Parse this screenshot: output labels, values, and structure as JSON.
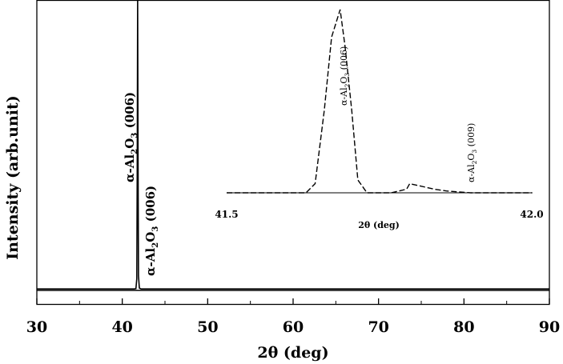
{
  "chart_data": [
    {
      "type": "line",
      "role": "main",
      "xlabel": "2θ (deg)",
      "ylabel": "Intensity (arb.unit)",
      "xlim": [
        30,
        90
      ],
      "ylim": [
        0,
        100
      ],
      "xticks": [
        30,
        40,
        50,
        60,
        70,
        80,
        90
      ],
      "xtick_labels": [
        "30",
        "40",
        "50",
        "60",
        "70",
        "80",
        "90"
      ],
      "y_ticks_shown": false,
      "grid": false,
      "x": [
        30,
        41.4,
        41.6,
        41.7,
        41.75,
        41.8,
        41.85,
        41.9,
        42.0,
        42.2,
        90
      ],
      "y": [
        0.5,
        0.5,
        0.6,
        4,
        40,
        100,
        45,
        5,
        0.8,
        0.5,
        0.5
      ],
      "annotations": [
        {
          "main": "α-Al",
          "sub1": "2",
          "mid": "O",
          "sub2": "3",
          "tail": " (006)",
          "at_x": 41.7,
          "orientation": "vertical",
          "position": "upper-left of peak"
        },
        {
          "main": "α-Al",
          "sub1": "2",
          "mid": "O",
          "sub2": "3",
          "tail": " (006)",
          "at_x": 42.0,
          "orientation": "vertical",
          "position": "lower-right of peak"
        }
      ]
    },
    {
      "type": "line",
      "role": "inset",
      "style": "dashed",
      "xlabel": "2θ (deg)",
      "ylabel": "",
      "xlim": [
        41.5,
        42.0
      ],
      "xtick_labels": [
        "41.5",
        "42.0"
      ],
      "ylim": [
        0,
        100
      ],
      "x": [
        41.5,
        41.63,
        41.645,
        41.66,
        41.672,
        41.686,
        41.694,
        41.705,
        41.715,
        41.73,
        41.77,
        41.795,
        41.8,
        41.84,
        41.86,
        41.88,
        41.9,
        41.95,
        42.0
      ],
      "y": [
        0,
        0,
        5,
        45,
        85,
        100,
        80,
        45,
        7,
        0,
        0,
        2,
        5,
        2,
        1,
        0.5,
        0,
        0,
        0
      ],
      "annotations": [
        {
          "main": "α-Al",
          "sub1": "2",
          "mid": "O",
          "sub2": "3",
          "tail": " (006)",
          "at_x": 41.672,
          "orientation": "vertical"
        },
        {
          "main": "α-Al",
          "sub1": "2",
          "mid": "O",
          "sub2": "3",
          "tail": " (009)",
          "at_x": 41.795,
          "orientation": "vertical"
        }
      ]
    }
  ]
}
